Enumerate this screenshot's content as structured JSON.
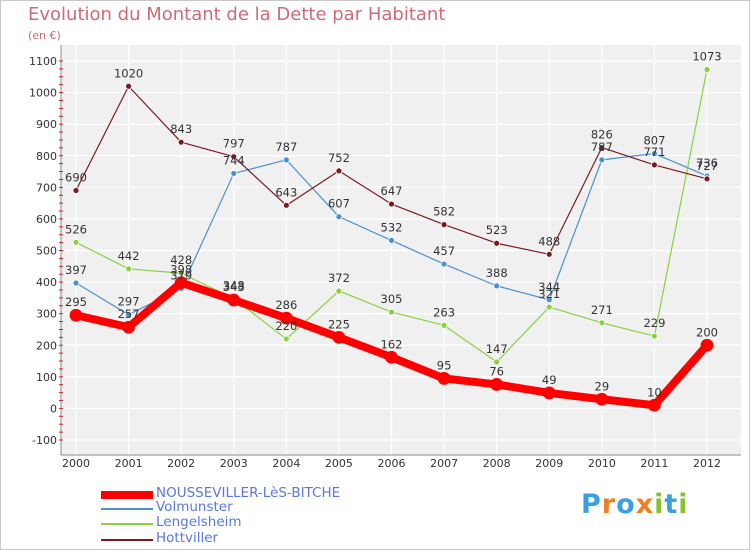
{
  "title": "Evolution du Montant de la Dette par Habitant",
  "unit": "(en €)",
  "brand": "Proxiti",
  "chart_data": {
    "type": "line",
    "x": [
      2000,
      2001,
      2002,
      2003,
      2004,
      2005,
      2006,
      2007,
      2008,
      2009,
      2010,
      2011,
      2012
    ],
    "ylim": [
      -100,
      1100
    ],
    "yticks": [
      -100,
      0,
      100,
      200,
      300,
      400,
      500,
      600,
      700,
      800,
      900,
      1000,
      1100
    ],
    "grid": true,
    "legend_placement": "bottom-left",
    "series": [
      {
        "name": "NOUSSEVILLER-LèS-BITCHE",
        "color": "#ff0000",
        "values": [
          295,
          257,
          398,
          343,
          286,
          225,
          162,
          95,
          76,
          49,
          29,
          10,
          200
        ],
        "labels": [
          "295",
          "257",
          "398",
          "343",
          "286",
          "225",
          "162",
          "95",
          "76",
          "49",
          "29",
          "10",
          "200"
        ]
      },
      {
        "name": "Volmunster",
        "color": "#4a90d0",
        "values": [
          397,
          297,
          379,
          744,
          787,
          607,
          532,
          457,
          388,
          344,
          787,
          807,
          736
        ],
        "labels": [
          "397",
          "297",
          "379",
          "744",
          "787",
          "607",
          "532",
          "457",
          "388",
          "344",
          "787",
          "807",
          "736"
        ]
      },
      {
        "name": "Lengelsheim",
        "color": "#88d040",
        "values": [
          526,
          442,
          428,
          348,
          220,
          372,
          305,
          263,
          147,
          321,
          271,
          229,
          1073
        ],
        "labels": [
          "526",
          "442",
          "428",
          "348",
          "220",
          "372",
          "305",
          "263",
          "147",
          "321",
          "271",
          "229",
          "1073"
        ]
      },
      {
        "name": "Hottviller",
        "color": "#7a1a20",
        "values": [
          690,
          1020,
          843,
          797,
          643,
          752,
          647,
          582,
          523,
          488,
          826,
          771,
          727
        ],
        "labels": [
          "690",
          "1020",
          "843",
          "797",
          "643",
          "752",
          "647",
          "582",
          "523",
          "488",
          "826",
          "771",
          "727"
        ]
      }
    ]
  }
}
